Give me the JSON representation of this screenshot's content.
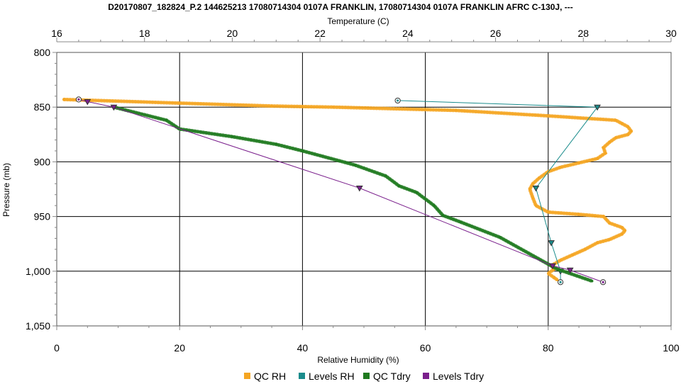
{
  "chart_data": {
    "type": "line",
    "title": "D20170807_182824_P.2 144625213 17080714304 0107A FRANKLIN, 17080714304 0107A FRANKLIN AFRC C-130J, ---",
    "x_bottom": {
      "label": "Relative Humidity (%)",
      "range": [
        0,
        100
      ],
      "ticks": [
        0,
        20,
        40,
        60,
        80,
        100
      ],
      "tick_labels": [
        "0",
        "20",
        "40",
        "60",
        "80",
        "100"
      ]
    },
    "x_top": {
      "label": "Temperature (C)",
      "range": [
        16,
        30
      ],
      "ticks": [
        16,
        18,
        20,
        22,
        24,
        26,
        28,
        30
      ],
      "tick_labels": [
        "16",
        "18",
        "20",
        "22",
        "24",
        "26",
        "28",
        "30"
      ]
    },
    "y": {
      "label": "Pressure (mb)",
      "range": [
        800,
        1050
      ],
      "inverted": true,
      "ticks": [
        800,
        850,
        900,
        950,
        1000,
        1050
      ],
      "tick_labels": [
        "800",
        "850",
        "900",
        "950",
        "1,000",
        "1,050"
      ]
    },
    "grid": true,
    "legend_position": "bottom",
    "series": [
      {
        "name": "QC RH",
        "axis": "bottom",
        "color": "#f5a623",
        "marker": "dot",
        "points": [
          [
            1.2,
            843
          ],
          [
            35,
            849
          ],
          [
            45,
            850
          ],
          [
            65,
            853
          ],
          [
            80,
            858
          ],
          [
            91,
            862
          ],
          [
            92,
            865
          ],
          [
            93,
            868
          ],
          [
            93.5,
            872
          ],
          [
            93,
            875
          ],
          [
            91,
            878
          ],
          [
            90,
            882
          ],
          [
            89,
            887
          ],
          [
            89.3,
            892
          ],
          [
            88,
            897
          ],
          [
            85,
            901
          ],
          [
            82,
            905
          ],
          [
            80,
            909
          ],
          [
            78.5,
            915
          ],
          [
            77.5,
            920
          ],
          [
            77,
            925
          ],
          [
            77.5,
            933
          ],
          [
            78,
            940
          ],
          [
            80,
            946
          ],
          [
            85,
            948
          ],
          [
            89,
            950
          ],
          [
            89.5,
            953
          ],
          [
            90,
            956
          ],
          [
            92,
            960
          ],
          [
            92.5,
            963
          ],
          [
            92,
            966
          ],
          [
            90,
            971
          ],
          [
            88,
            974
          ],
          [
            86,
            980
          ],
          [
            84,
            985
          ],
          [
            82,
            990
          ],
          [
            80.5,
            995
          ],
          [
            81,
            998
          ],
          [
            80,
            1002
          ],
          [
            81,
            1006
          ],
          [
            81.5,
            1008
          ]
        ]
      },
      {
        "name": "Levels RH",
        "axis": "bottom",
        "color": "#1a8c8c",
        "marker": "triangle",
        "points": [
          [
            55.5,
            844
          ],
          [
            88,
            850
          ],
          [
            78,
            924
          ],
          [
            80.5,
            974
          ],
          [
            82,
            1000
          ],
          [
            82,
            1010
          ]
        ]
      },
      {
        "name": "QC Tdry",
        "axis": "top",
        "color": "#1f7a1f",
        "marker": "dot",
        "points": [
          [
            17.3,
            850
          ],
          [
            18.5,
            862
          ],
          [
            18.8,
            870
          ],
          [
            20,
            877
          ],
          [
            21,
            884
          ],
          [
            21.6,
            890
          ],
          [
            22.8,
            903
          ],
          [
            23.5,
            913
          ],
          [
            23.8,
            922
          ],
          [
            24.2,
            928
          ],
          [
            24.6,
            940
          ],
          [
            24.8,
            949
          ],
          [
            25.2,
            955
          ],
          [
            26.1,
            969
          ],
          [
            27.4,
            998
          ],
          [
            28.2,
            1009
          ]
        ]
      },
      {
        "name": "Levels Tdry",
        "axis": "top",
        "color": "#7a1f8c",
        "marker": "triangle",
        "points": [
          [
            16.5,
            843
          ],
          [
            16.7,
            845
          ],
          [
            17.3,
            850
          ],
          [
            22.9,
            924
          ],
          [
            27.3,
            995
          ],
          [
            27.7,
            999
          ],
          [
            28.45,
            1010
          ]
        ]
      }
    ]
  }
}
